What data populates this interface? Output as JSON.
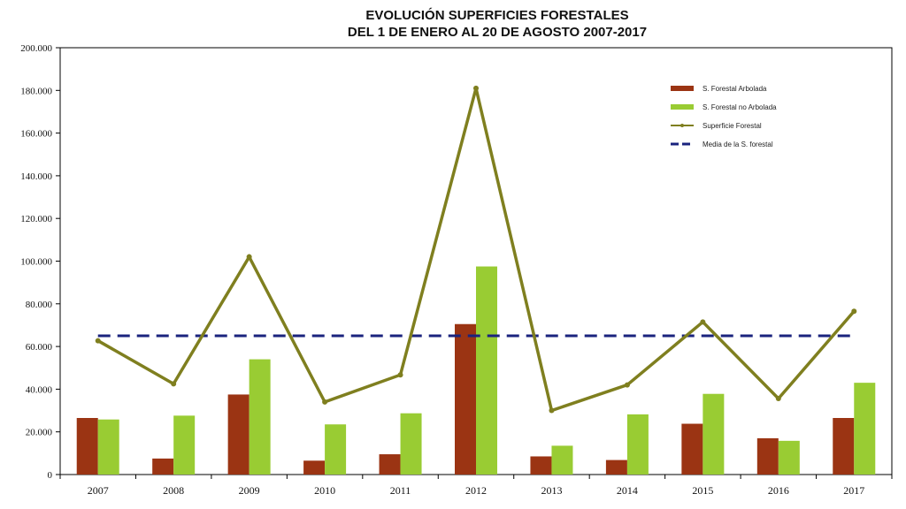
{
  "chart_data": {
    "type": "bar",
    "title": "EVOLUCIÓN SUPERFICIES FORESTALES",
    "subtitle": "DEL 1 DE ENERO AL 20 DE AGOSTO 2007-2017",
    "categories": [
      "2007",
      "2008",
      "2009",
      "2010",
      "2011",
      "2012",
      "2013",
      "2014",
      "2015",
      "2016",
      "2017"
    ],
    "ylim": [
      0,
      200000
    ],
    "yticks": [
      "0",
      "20.000",
      "40.000",
      "60.000",
      "80.000",
      "100.000",
      "120.000",
      "140.000",
      "160.000",
      "180.000",
      "200.000"
    ],
    "ytick_values": [
      0,
      20000,
      40000,
      60000,
      80000,
      100000,
      120000,
      140000,
      160000,
      180000,
      200000
    ],
    "grid": false,
    "legend_position": "top-right",
    "series": [
      {
        "name": "S. Forestal Arbolada",
        "kind": "bar",
        "color": "#9B3413",
        "values": [
          26500,
          7500,
          37500,
          6500,
          9500,
          70500,
          8500,
          6800,
          23800,
          17000,
          26500
        ]
      },
      {
        "name": "S. Forestal no Arbolada",
        "kind": "bar",
        "color": "#99CC33",
        "values": [
          25800,
          27600,
          54000,
          23500,
          28700,
          97500,
          13500,
          28200,
          37800,
          15800,
          43000
        ]
      },
      {
        "name": "Superficie Forestal",
        "kind": "line",
        "color": "#7F7F1F",
        "values": [
          62700,
          42500,
          102000,
          34000,
          46700,
          181000,
          30000,
          42000,
          71500,
          35600,
          76500
        ]
      },
      {
        "name": "Media de la S. forestal",
        "kind": "dashed",
        "color": "#1A237E",
        "values": [
          65000,
          65000,
          65000,
          65000,
          65000,
          65000,
          65000,
          65000,
          65000,
          65000,
          65000
        ]
      }
    ]
  }
}
